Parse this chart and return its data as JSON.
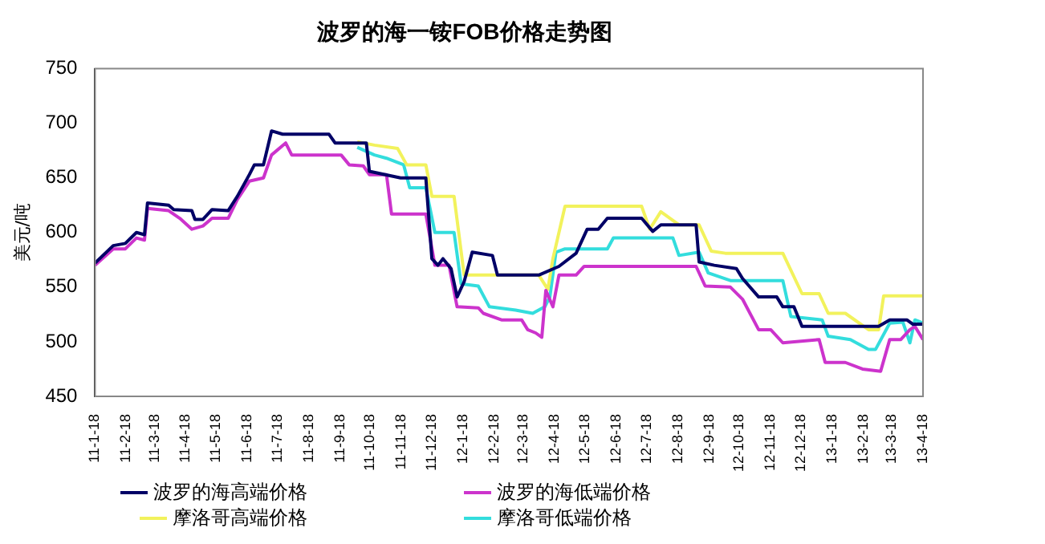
{
  "chart_data": {
    "type": "line",
    "title": "波罗的海一铵FOB价格走势图",
    "ylabel": "美元/吨",
    "xlim": [
      "2011-01-18",
      "2013-04-18"
    ],
    "xticks": [
      {
        "value": "2011-01-18",
        "label": "11-1-18"
      },
      {
        "value": "2011-02-18",
        "label": "11-2-18"
      },
      {
        "value": "2011-03-18",
        "label": "11-3-18"
      },
      {
        "value": "2011-04-18",
        "label": "11-4-18"
      },
      {
        "value": "2011-05-18",
        "label": "11-5-18"
      },
      {
        "value": "2011-06-18",
        "label": "11-6-18"
      },
      {
        "value": "2011-07-18",
        "label": "11-7-18"
      },
      {
        "value": "2011-08-18",
        "label": "11-8-18"
      },
      {
        "value": "2011-09-18",
        "label": "11-9-18"
      },
      {
        "value": "2011-10-18",
        "label": "11-10-18"
      },
      {
        "value": "2011-11-18",
        "label": "11-11-18"
      },
      {
        "value": "2011-12-18",
        "label": "11-12-18"
      },
      {
        "value": "2012-01-18",
        "label": "12-1-18"
      },
      {
        "value": "2012-02-18",
        "label": "12-2-18"
      },
      {
        "value": "2012-03-18",
        "label": "12-3-18"
      },
      {
        "value": "2012-04-18",
        "label": "12-4-18"
      },
      {
        "value": "2012-05-18",
        "label": "12-5-18"
      },
      {
        "value": "2012-06-18",
        "label": "12-6-18"
      },
      {
        "value": "2012-07-18",
        "label": "12-7-18"
      },
      {
        "value": "2012-08-18",
        "label": "12-8-18"
      },
      {
        "value": "2012-09-18",
        "label": "12-9-18"
      },
      {
        "value": "2012-10-18",
        "label": "12-10-18"
      },
      {
        "value": "2012-11-18",
        "label": "12-11-18"
      },
      {
        "value": "2012-12-18",
        "label": "12-12-18"
      },
      {
        "value": "2013-01-18",
        "label": "13-1-18"
      },
      {
        "value": "2013-02-18",
        "label": "13-2-18"
      },
      {
        "value": "2013-03-18",
        "label": "13-3-18"
      },
      {
        "value": "2013-04-18",
        "label": "13-4-18"
      }
    ],
    "ylim": [
      450,
      750
    ],
    "yticks": [
      450,
      500,
      550,
      600,
      650,
      700,
      750
    ],
    "grid": false,
    "legend": "bottom",
    "marker": "none",
    "line_style": "solid",
    "series": [
      {
        "name": "波罗的海高端价格",
        "color": "#000066",
        "x": [
          "2011-01-18",
          "2011-02-05",
          "2011-02-17",
          "2011-02-28",
          "2011-03-08",
          "2011-03-11",
          "2011-04-01",
          "2011-04-06",
          "2011-04-24",
          "2011-04-27",
          "2011-05-05",
          "2011-05-14",
          "2011-05-30",
          "2011-06-08",
          "2011-06-20",
          "2011-06-25",
          "2011-07-04",
          "2011-07-12",
          "2011-07-23",
          "2011-09-07",
          "2011-09-13",
          "2011-10-14",
          "2011-10-17",
          "2011-11-17",
          "2011-12-12",
          "2011-12-18",
          "2011-12-24",
          "2011-12-29",
          "2012-01-06",
          "2012-01-12",
          "2012-01-19",
          "2012-01-27",
          "2012-02-16",
          "2012-02-21",
          "2012-04-02",
          "2012-04-22",
          "2012-05-09",
          "2012-05-20",
          "2012-05-31",
          "2012-06-09",
          "2012-07-13",
          "2012-07-24",
          "2012-08-01",
          "2012-08-13",
          "2012-09-05",
          "2012-09-08",
          "2012-09-23",
          "2012-10-15",
          "2012-10-21",
          "2012-11-06",
          "2012-11-24",
          "2012-11-30",
          "2012-12-11",
          "2012-12-19",
          "2013-03-05",
          "2013-03-16",
          "2013-04-02",
          "2013-04-08",
          "2013-04-18"
        ],
        "values": [
          572,
          588,
          590,
          600,
          598,
          627,
          625,
          621,
          620,
          612,
          612,
          621,
          620,
          633,
          653,
          662,
          662,
          693,
          690,
          690,
          682,
          682,
          656,
          650,
          650,
          576,
          570,
          576,
          567,
          541,
          555,
          582,
          579,
          561,
          561,
          569,
          581,
          603,
          603,
          613,
          613,
          601,
          607,
          607,
          607,
          573,
          570,
          567,
          558,
          541,
          541,
          532,
          532,
          514,
          514,
          520,
          520,
          516,
          516
        ]
      },
      {
        "name": "波罗的海低端价格",
        "color": "#cc33cc",
        "x": [
          "2011-01-18",
          "2011-02-05",
          "2011-02-17",
          "2011-02-28",
          "2011-03-08",
          "2011-03-11",
          "2011-04-01",
          "2011-04-12",
          "2011-04-24",
          "2011-05-05",
          "2011-05-14",
          "2011-05-30",
          "2011-06-08",
          "2011-06-20",
          "2011-07-04",
          "2011-07-12",
          "2011-07-26",
          "2011-08-01",
          "2011-09-19",
          "2011-09-27",
          "2011-10-11",
          "2011-10-17",
          "2011-11-03",
          "2011-11-08",
          "2011-12-12",
          "2011-12-21",
          "2012-01-04",
          "2012-01-12",
          "2012-02-02",
          "2012-02-07",
          "2012-02-25",
          "2012-03-16",
          "2012-03-22",
          "2012-03-30",
          "2012-04-05",
          "2012-04-09",
          "2012-04-16",
          "2012-04-22",
          "2012-05-09",
          "2012-05-17",
          "2012-09-05",
          "2012-09-14",
          "2012-10-09",
          "2012-10-21",
          "2012-11-06",
          "2012-11-18",
          "2012-11-30",
          "2013-01-05",
          "2013-01-11",
          "2013-01-31",
          "2013-02-17",
          "2013-03-07",
          "2013-03-16",
          "2013-03-27",
          "2013-04-05",
          "2013-04-10",
          "2013-04-18"
        ],
        "values": [
          570,
          585,
          585,
          595,
          593,
          622,
          620,
          613,
          603,
          606,
          613,
          613,
          630,
          647,
          650,
          671,
          682,
          671,
          671,
          662,
          661,
          653,
          653,
          617,
          617,
          570,
          570,
          532,
          531,
          526,
          520,
          520,
          511,
          508,
          504,
          547,
          532,
          561,
          561,
          569,
          569,
          551,
          550,
          539,
          511,
          511,
          499,
          502,
          481,
          481,
          475,
          473,
          502,
          502,
          511,
          514,
          502
        ]
      },
      {
        "name": "摩洛哥高端价格",
        "color": "#f2f25c",
        "x": [
          "2011-10-05",
          "2011-10-22",
          "2011-11-14",
          "2011-11-23",
          "2011-12-12",
          "2011-12-18",
          "2012-01-09",
          "2012-01-19",
          "2012-04-02",
          "2012-04-11",
          "2012-04-16",
          "2012-04-28",
          "2012-07-13",
          "2012-07-21",
          "2012-08-01",
          "2012-08-19",
          "2012-09-08",
          "2012-09-20",
          "2012-10-04",
          "2012-11-30",
          "2012-12-19",
          "2013-01-05",
          "2013-01-14",
          "2013-01-31",
          "2013-02-23",
          "2013-03-05",
          "2013-03-10",
          "2013-04-18"
        ],
        "values": [
          683,
          680,
          677,
          662,
          662,
          633,
          633,
          561,
          561,
          548,
          576,
          624,
          624,
          603,
          619,
          607,
          607,
          583,
          581,
          581,
          544,
          544,
          526,
          526,
          511,
          511,
          542,
          542
        ]
      },
      {
        "name": "摩洛哥低端价格",
        "color": "#33dddd",
        "x": [
          "2011-10-05",
          "2011-10-22",
          "2011-11-03",
          "2011-11-20",
          "2011-11-26",
          "2011-12-12",
          "2011-12-21",
          "2012-01-09",
          "2012-01-16",
          "2012-02-02",
          "2012-02-13",
          "2012-03-10",
          "2012-03-27",
          "2012-04-08",
          "2012-04-13",
          "2012-04-19",
          "2012-04-28",
          "2012-06-09",
          "2012-06-15",
          "2012-08-13",
          "2012-08-19",
          "2012-09-08",
          "2012-09-17",
          "2012-10-09",
          "2012-11-30",
          "2012-12-08",
          "2013-01-08",
          "2013-01-14",
          "2013-02-05",
          "2013-02-23",
          "2013-03-02",
          "2013-03-16",
          "2013-03-29",
          "2013-04-05",
          "2013-04-10",
          "2013-04-18"
        ],
        "values": [
          678,
          671,
          668,
          662,
          641,
          641,
          600,
          600,
          553,
          551,
          532,
          529,
          526,
          532,
          541,
          582,
          585,
          585,
          595,
          595,
          579,
          582,
          563,
          556,
          556,
          523,
          520,
          505,
          502,
          493,
          493,
          517,
          518,
          499,
          520,
          517
        ]
      }
    ]
  }
}
